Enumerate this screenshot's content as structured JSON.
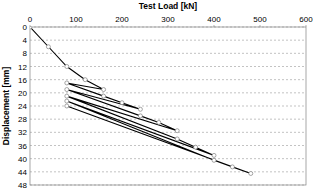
{
  "chart_data": {
    "type": "line",
    "x_label": "Test Load [kN]",
    "y_label": "Displacement [mm]",
    "x": [
      0,
      40,
      80,
      120,
      160,
      80,
      160,
      200,
      240,
      80,
      240,
      280,
      320,
      80,
      320,
      360,
      400,
      80,
      400,
      440,
      480,
      80
    ],
    "series": [
      {
        "color": "#000000",
        "marker": "circle",
        "line_style": "solid",
        "values": [
          0,
          6,
          12,
          16,
          19,
          17,
          21,
          23,
          25,
          19,
          27,
          29,
          31.5,
          21,
          34,
          36.5,
          39,
          22.5,
          40.5,
          42.5,
          44.5,
          24
        ]
      }
    ],
    "xlim": [
      0,
      600
    ],
    "xticks": [
      0,
      100,
      200,
      300,
      400,
      500,
      600
    ],
    "ylim": [
      48,
      0
    ],
    "yticks": [
      0,
      4,
      8,
      12,
      16,
      20,
      24,
      28,
      32,
      36,
      40,
      44,
      48
    ],
    "grid": true
  }
}
